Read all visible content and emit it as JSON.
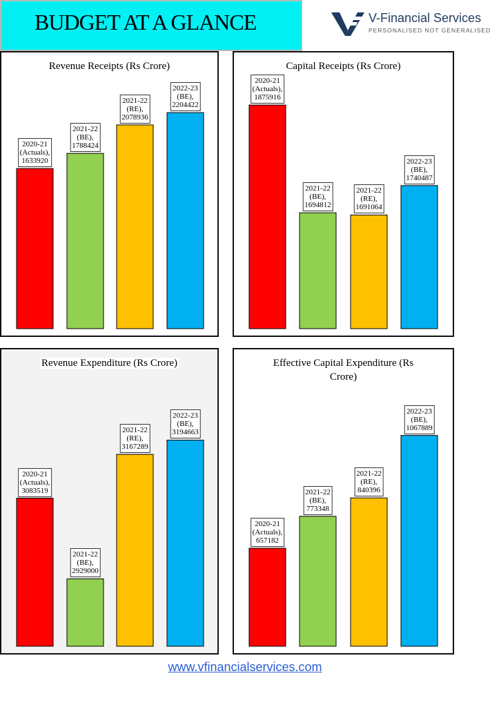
{
  "header": {
    "title": "BUDGET AT A GLANCE",
    "logo_name": "V-Financial Services",
    "logo_tagline": "PERSONALISED NOT GENERALISED",
    "logo_color": "#1f3b5f",
    "title_bg": "#00f0f4"
  },
  "footer": {
    "url": "www.vfinancialservices.com"
  },
  "colors": [
    "#ff0000",
    "#92d050",
    "#ffc000",
    "#00b0f0"
  ],
  "chart_data": [
    {
      "type": "bar",
      "title": "Revenue Receipts (Rs Crore)",
      "categories": [
        "2020-21 (Actuals),",
        "2021-22 (BE),",
        "2021-22 (RE),",
        "2022-23 (BE),"
      ],
      "values": [
        1633920,
        1788424,
        2078936,
        2204422
      ],
      "labels": [
        [
          "2020-21",
          "(Actuals),",
          "1633920"
        ],
        [
          "2021-22",
          "(BE),",
          "1788424"
        ],
        [
          "2021-22",
          "(RE),",
          "2078936"
        ],
        [
          "2022-23",
          "(BE),",
          "2204422"
        ]
      ],
      "ylim": [
        0,
        2480000
      ]
    },
    {
      "type": "bar",
      "title": "Capital Receipts (Rs Crore)",
      "categories": [
        "2020-21 (Actuals),",
        "2021-22 (BE),",
        "2021-22 (RE),",
        "2022-23 (BE),"
      ],
      "values": [
        1875916,
        1694812,
        1691064,
        1740487
      ],
      "labels": [
        [
          "2020-21",
          "(Actuals),",
          "1875916"
        ],
        [
          "2021-22",
          "(BE),",
          "1694812"
        ],
        [
          "2021-22",
          "(RE),",
          "1691064"
        ],
        [
          "2022-23",
          "(BE),",
          "1740487"
        ]
      ],
      "ylim": [
        1500000,
        1890000
      ]
    },
    {
      "type": "bar",
      "title": "Revenue Expenditure (Rs Crore)",
      "categories": [
        "2020-21 (Actuals),",
        "2021-22 (BE),",
        "2021-22 (RE),",
        "2022-23 (BE),"
      ],
      "values": [
        3083519,
        2929000,
        3167289,
        3194663
      ],
      "labels": [
        [
          "2020-21",
          "(Actuals),",
          "3083519"
        ],
        [
          "2021-22",
          "(BE),",
          "2929000"
        ],
        [
          "2021-22",
          "(RE),",
          "3167289"
        ],
        [
          "2022-23",
          "(BE),",
          "3194663"
        ]
      ],
      "ylim": [
        2800000,
        3260000
      ]
    },
    {
      "type": "bar",
      "title": "Effective Capital Expenditure (Rs Crore)",
      "categories": [
        "2020-21 (Actuals),",
        "2021-22 (BE),",
        "2021-22 (RE),",
        "2022-23 (BE),"
      ],
      "values": [
        657182,
        773348,
        840396,
        1067889
      ],
      "labels": [
        [
          "2020-21",
          "(Actuals),",
          "657182"
        ],
        [
          "2021-22",
          "(BE),",
          "773348"
        ],
        [
          "2021-22",
          "(RE),",
          "840396"
        ],
        [
          "2022-23",
          "(BE),",
          "1067889"
        ]
      ],
      "ylim": [
        300000,
        1130000
      ]
    }
  ]
}
